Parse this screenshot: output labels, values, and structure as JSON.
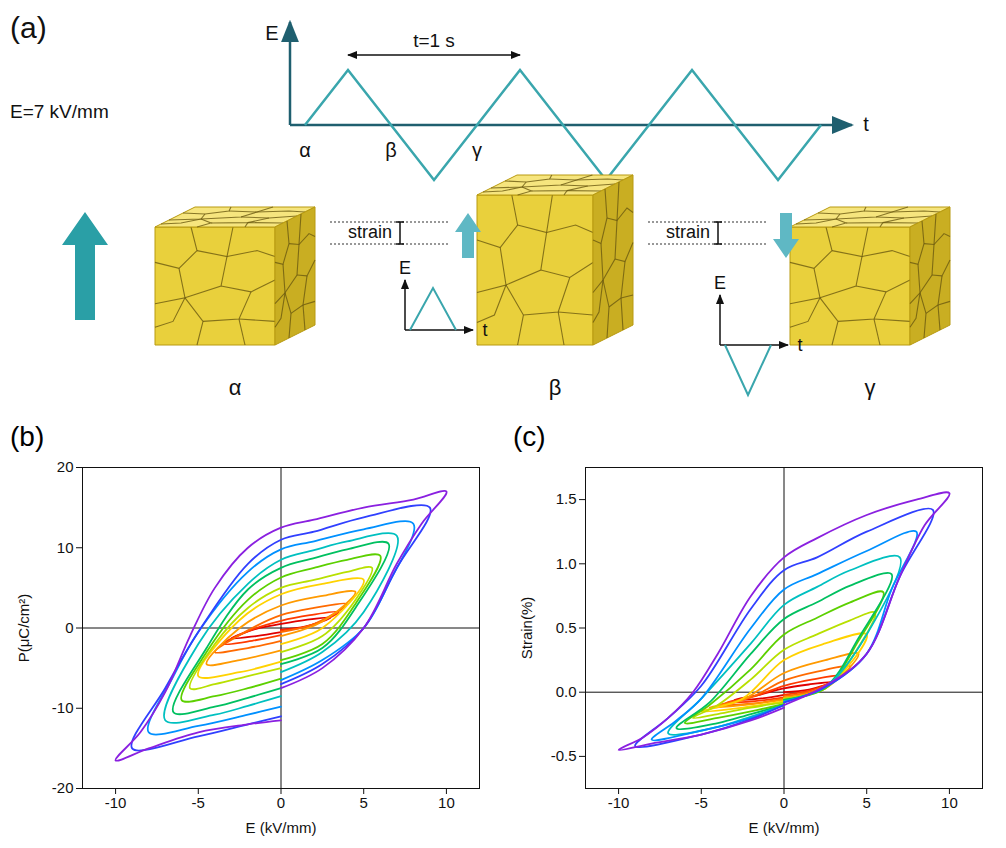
{
  "diagram": {
    "panel_label": "(a)",
    "waveform": {
      "y_label": "E",
      "x_label": "t",
      "period_label": "t=1 s",
      "markers": [
        "α",
        "β",
        "γ"
      ]
    },
    "field_label": "E=7 kV/mm",
    "states": [
      "α",
      "β",
      "γ"
    ],
    "steps": [
      {
        "label": "strain",
        "pulse": {
          "y_label": "E",
          "x_label": "t"
        }
      },
      {
        "label": "strain",
        "pulse": {
          "y_label": "E",
          "x_label": "t"
        }
      }
    ]
  },
  "chart_data": [
    {
      "type": "line",
      "title": "(b)",
      "x_label": "E (kV/mm)",
      "y_label": "P(μC/cm²)",
      "xlim": [
        -12,
        12
      ],
      "xticks": [
        -10,
        -5,
        0,
        5,
        10
      ],
      "ylim": [
        -20,
        20
      ],
      "yticks": [
        -20,
        -10,
        0,
        10,
        20
      ],
      "grid": false,
      "series": [
        {
          "color": "#e00000",
          "x": [
            0,
            1.5,
            3,
            1.5,
            0,
            -1.5,
            -3,
            -1.5,
            0
          ],
          "values": [
            -0.2,
            0.2,
            1.3,
            1.0,
            0.5,
            -0.1,
            -1.3,
            -1.0,
            -0.5
          ]
        },
        {
          "color": "#ff3a00",
          "x": [
            0,
            1.75,
            3.5,
            1.75,
            0,
            -1.75,
            -3.5,
            -1.75,
            0
          ],
          "values": [
            -0.3,
            0.3,
            2.0,
            1.6,
            0.9,
            -0.2,
            -2.0,
            -1.6,
            -0.9
          ]
        },
        {
          "color": "#ff6a00",
          "x": [
            0,
            2,
            4,
            2,
            0,
            -2,
            -4,
            -2,
            0
          ],
          "values": [
            -0.5,
            0.5,
            3.0,
            2.5,
            1.6,
            -0.3,
            -3.0,
            -2.5,
            -1.6
          ]
        },
        {
          "color": "#ff9a00",
          "x": [
            0,
            2.5,
            4.5,
            2.5,
            0,
            -2.5,
            -4.5,
            -2.5,
            0
          ],
          "values": [
            -1,
            0.8,
            4.5,
            4,
            2.8,
            0,
            -4.5,
            -4,
            -2.8
          ]
        },
        {
          "color": "#ffd200",
          "x": [
            0,
            2.5,
            5,
            2.5,
            0,
            -2.5,
            -5,
            -2.5,
            0
          ],
          "values": [
            -2,
            0,
            6,
            5.5,
            4.2,
            1,
            -6,
            -5.5,
            -4.2
          ]
        },
        {
          "color": "#b8e000",
          "x": [
            0,
            2.5,
            4.5,
            5.5,
            4,
            2,
            0,
            -2,
            -4,
            -5.5,
            -4,
            -2,
            0
          ],
          "values": [
            -3,
            -1,
            3.5,
            7.5,
            7,
            6,
            5,
            2.5,
            -2,
            -7.5,
            -7,
            -6,
            -5
          ]
        },
        {
          "color": "#5cd000",
          "x": [
            0,
            2.5,
            4.5,
            6,
            4,
            2,
            0,
            -2,
            -4.5,
            -6,
            -4,
            -2,
            0
          ],
          "values": [
            -4,
            -2,
            3,
            9,
            8.5,
            7.5,
            6.3,
            3.5,
            -3,
            -9,
            -8.5,
            -7.5,
            -6.3
          ]
        },
        {
          "color": "#00c060",
          "x": [
            0,
            2.5,
            4.5,
            6.5,
            4,
            2,
            0,
            -2,
            -4.5,
            -6.5,
            -4,
            -2,
            0
          ],
          "values": [
            -4.5,
            -2.5,
            2.5,
            10.5,
            9.8,
            8.7,
            7.5,
            4.8,
            -2.5,
            -10.5,
            -9.8,
            -8.7,
            -7.5
          ]
        },
        {
          "color": "#00c0c0",
          "x": [
            0,
            2.5,
            5,
            7,
            4,
            2,
            0,
            -2,
            -5,
            -7,
            -4,
            -2,
            0
          ],
          "values": [
            -5.5,
            -3,
            2,
            11.5,
            10.8,
            9.7,
            8.5,
            5.5,
            -2,
            -11.5,
            -10.8,
            -9.7,
            -8.5
          ]
        },
        {
          "color": "#0090ff",
          "x": [
            0,
            2.5,
            5,
            6.5,
            8,
            5,
            2,
            0,
            -2,
            -5,
            -6.5,
            -8,
            -5,
            -2,
            0
          ],
          "values": [
            -6.5,
            -4,
            0,
            5.5,
            13,
            12.3,
            10.8,
            9.8,
            7,
            -0.5,
            -6,
            -13,
            -12.2,
            -10.8,
            -9.8
          ]
        },
        {
          "color": "#3040ff",
          "x": [
            0,
            2.5,
            5,
            7,
            9,
            5,
            2,
            0,
            -2,
            -5,
            -7,
            -9,
            -5,
            -2,
            0
          ],
          "values": [
            -7,
            -4.5,
            0,
            7.5,
            15,
            13.8,
            12,
            11,
            8,
            -0.5,
            -7.5,
            -15,
            -13.5,
            -12,
            -11
          ]
        },
        {
          "color": "#8a20e0",
          "x": [
            0,
            2.5,
            5,
            7,
            8.5,
            10,
            8,
            5,
            2,
            0,
            -2,
            -4,
            -5.5,
            -7,
            -8.5,
            -10,
            -8,
            -5,
            -2,
            0
          ],
          "values": [
            -7.5,
            -5,
            0,
            8,
            13,
            17,
            16,
            15,
            13.5,
            12.5,
            10,
            5,
            -1,
            -8,
            -13,
            -16.5,
            -15,
            -13,
            -12,
            -11.5
          ]
        }
      ]
    },
    {
      "type": "line",
      "title": "(c)",
      "x_label": "E (kV/mm)",
      "y_label": "Strain(%)",
      "xlim": [
        -12,
        12
      ],
      "xticks": [
        -10,
        -5,
        0,
        5,
        10
      ],
      "ylim": [
        -0.75,
        1.75
      ],
      "yticks": [
        -0.5,
        {
          "value": 0,
          "label": "0.0"
        },
        {
          "value": 0.5,
          "label": "0.5"
        },
        {
          "value": 1,
          "label": "1.0"
        },
        1.5
      ],
      "grid": false,
      "series": [
        {
          "color": "#e00000",
          "x": [
            0,
            1.5,
            3,
            1.5,
            0,
            -1.5,
            -3,
            -1.5,
            0
          ],
          "values": [
            0,
            0.02,
            0.08,
            0.06,
            0.03,
            -0.02,
            -0.06,
            -0.05,
            -0.02
          ]
        },
        {
          "color": "#ff3a00",
          "x": [
            0,
            1.75,
            3.5,
            1.75,
            0,
            -1.75,
            -3.5,
            -1.75,
            0
          ],
          "values": [
            -0.02,
            0.02,
            0.13,
            0.1,
            0.05,
            -0.03,
            -0.08,
            -0.07,
            -0.04
          ]
        },
        {
          "color": "#ff6a00",
          "x": [
            0,
            2,
            4,
            2,
            0,
            -2,
            -4,
            -2,
            0
          ],
          "values": [
            -0.03,
            0.02,
            0.2,
            0.16,
            0.09,
            -0.04,
            -0.1,
            -0.09,
            -0.05
          ]
        },
        {
          "color": "#ff9a00",
          "x": [
            0,
            2.5,
            4.5,
            2.5,
            0,
            -2.5,
            -4.5,
            -2.5,
            0
          ],
          "values": [
            -0.04,
            0.03,
            0.3,
            0.25,
            0.15,
            -0.06,
            -0.12,
            -0.1,
            -0.06
          ]
        },
        {
          "color": "#ffd200",
          "x": [
            0,
            2.5,
            5,
            2.5,
            0,
            -2.5,
            -5,
            -2.5,
            0
          ],
          "values": [
            -0.05,
            0.03,
            0.45,
            0.38,
            0.25,
            -0.05,
            -0.15,
            -0.12,
            -0.07
          ]
        },
        {
          "color": "#b8e000",
          "x": [
            0,
            2.5,
            4.5,
            5.5,
            4,
            2,
            0,
            -2,
            -4,
            -5.5,
            -4,
            -2,
            0
          ],
          "values": [
            -0.05,
            0.03,
            0.35,
            0.62,
            0.56,
            0.45,
            0.33,
            0.1,
            -0.1,
            -0.2,
            -0.17,
            -0.12,
            -0.08
          ]
        },
        {
          "color": "#5cd000",
          "x": [
            0,
            2.5,
            4.5,
            6,
            4,
            2,
            0,
            -2,
            -4.5,
            -6,
            -4,
            -2,
            0
          ],
          "values": [
            -0.06,
            0.03,
            0.4,
            0.78,
            0.7,
            0.58,
            0.45,
            0.18,
            -0.1,
            -0.24,
            -0.2,
            -0.15,
            -0.09
          ]
        },
        {
          "color": "#00c060",
          "x": [
            0,
            2.5,
            4.5,
            6.5,
            4,
            2,
            0,
            -2,
            -4.5,
            -6.5,
            -4,
            -2,
            0
          ],
          "values": [
            -0.06,
            0.04,
            0.42,
            0.92,
            0.83,
            0.7,
            0.57,
            0.3,
            -0.08,
            -0.28,
            -0.24,
            -0.17,
            -0.1
          ]
        },
        {
          "color": "#00c0c0",
          "x": [
            0,
            2.5,
            5,
            7,
            4,
            2,
            0,
            -2,
            -5,
            -7,
            -4,
            -2,
            0
          ],
          "values": [
            -0.07,
            0.04,
            0.45,
            1.05,
            0.95,
            0.82,
            0.68,
            0.38,
            -0.05,
            -0.32,
            -0.27,
            -0.19,
            -0.1
          ]
        },
        {
          "color": "#0090ff",
          "x": [
            0,
            2.5,
            5,
            6.5,
            8,
            5,
            2,
            0,
            -2,
            -5,
            -6.5,
            -8,
            -5,
            -2,
            0
          ],
          "values": [
            -0.08,
            0.04,
            0.3,
            0.8,
            1.25,
            1.1,
            0.92,
            0.8,
            0.5,
            -0.05,
            -0.22,
            -0.37,
            -0.3,
            -0.2,
            -0.1
          ]
        },
        {
          "color": "#3040ff",
          "x": [
            0,
            2.5,
            5,
            7,
            9,
            5,
            2,
            0,
            -2,
            -5,
            -7,
            -9,
            -5,
            -2,
            0
          ],
          "values": [
            -0.08,
            0.04,
            0.3,
            0.9,
            1.42,
            1.25,
            1.05,
            0.95,
            0.65,
            0.05,
            -0.2,
            -0.42,
            -0.33,
            -0.21,
            -0.1
          ]
        },
        {
          "color": "#8a20e0",
          "x": [
            0,
            2.5,
            5,
            7,
            8.5,
            10,
            8,
            5,
            2,
            0,
            -2,
            -4,
            -5.5,
            -7,
            -8.5,
            -10,
            -8,
            -5,
            -2,
            0
          ],
          "values": [
            -0.1,
            0.05,
            0.3,
            0.9,
            1.3,
            1.55,
            1.5,
            1.38,
            1.2,
            1.05,
            0.75,
            0.3,
            0,
            -0.2,
            -0.35,
            -0.45,
            -0.4,
            -0.33,
            -0.22,
            -0.12
          ]
        }
      ]
    }
  ]
}
